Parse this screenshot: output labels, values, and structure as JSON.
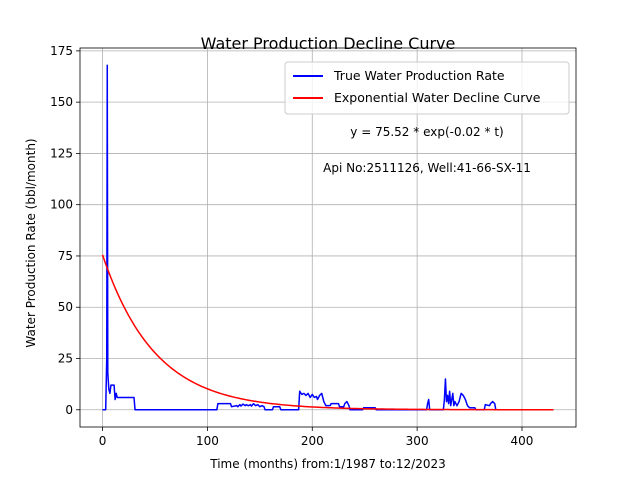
{
  "chart_data": {
    "type": "line",
    "title": "Water Production Decline Curve",
    "xlabel": "Time (months) from:1/1987 to:12/2023",
    "ylabel": "Water Production Rate (bbl/month)",
    "xlim": [
      -21.5,
      451.5
    ],
    "ylim": [
      -8.4,
      176.4
    ],
    "xticks": [
      0,
      100,
      200,
      300,
      400
    ],
    "yticks": [
      0,
      25,
      50,
      75,
      100,
      125,
      150,
      175
    ],
    "grid": true,
    "legend_position": "top-right",
    "annotations": [
      "y = 75.52 * exp(-0.02 * t)",
      "Api No:2511126, Well:41-66-SX-11"
    ],
    "series": [
      {
        "name": "True Water Production Rate",
        "color": "#0000ff",
        "points": [
          [
            0,
            0
          ],
          [
            3,
            0
          ],
          [
            4,
            25
          ],
          [
            4.5,
            168
          ],
          [
            5,
            18
          ],
          [
            6,
            10
          ],
          [
            7,
            8
          ],
          [
            8,
            12
          ],
          [
            11,
            12
          ],
          [
            12,
            5
          ],
          [
            13,
            8
          ],
          [
            14,
            6
          ],
          [
            30,
            6
          ],
          [
            31,
            0
          ],
          [
            109,
            0
          ],
          [
            110,
            3
          ],
          [
            122,
            3
          ],
          [
            123,
            1.5
          ],
          [
            128,
            2
          ],
          [
            129,
            1.5
          ],
          [
            131,
            2.5
          ],
          [
            132,
            1.8
          ],
          [
            134,
            2.8
          ],
          [
            136,
            2
          ],
          [
            137,
            2.5
          ],
          [
            139,
            2
          ],
          [
            141,
            2.5
          ],
          [
            142,
            1.8
          ],
          [
            144,
            3
          ],
          [
            146,
            2
          ],
          [
            148,
            2.5
          ],
          [
            150,
            1.5
          ],
          [
            152,
            2
          ],
          [
            154,
            1.5
          ],
          [
            155,
            0
          ],
          [
            162,
            0
          ],
          [
            163,
            1.5
          ],
          [
            169,
            1.5
          ],
          [
            170,
            0
          ],
          [
            187,
            0
          ],
          [
            188,
            9
          ],
          [
            190,
            7.5
          ],
          [
            192,
            8
          ],
          [
            194,
            7
          ],
          [
            196,
            8
          ],
          [
            198,
            6
          ],
          [
            200,
            7.5
          ],
          [
            202,
            6
          ],
          [
            204,
            6.5
          ],
          [
            205,
            5
          ],
          [
            207,
            7
          ],
          [
            209,
            8
          ],
          [
            211,
            4
          ],
          [
            213,
            2
          ],
          [
            217,
            2
          ],
          [
            218,
            3
          ],
          [
            225,
            3
          ],
          [
            226,
            1.5
          ],
          [
            230,
            1.5
          ],
          [
            231,
            3
          ],
          [
            233,
            4
          ],
          [
            235,
            2
          ],
          [
            236,
            0
          ],
          [
            248,
            0
          ],
          [
            249,
            1
          ],
          [
            260,
            1
          ],
          [
            261,
            0
          ],
          [
            309,
            0
          ],
          [
            310,
            3
          ],
          [
            311,
            5
          ],
          [
            312,
            0
          ],
          [
            325,
            0
          ],
          [
            326,
            5
          ],
          [
            327,
            15
          ],
          [
            328,
            4
          ],
          [
            329,
            7
          ],
          [
            330,
            3
          ],
          [
            331,
            9
          ],
          [
            332,
            2
          ],
          [
            334,
            8
          ],
          [
            335,
            2
          ],
          [
            336,
            4
          ],
          [
            338,
            2
          ],
          [
            340,
            4
          ],
          [
            342,
            8
          ],
          [
            344,
            7
          ],
          [
            346,
            5
          ],
          [
            348,
            2
          ],
          [
            350,
            1
          ],
          [
            355,
            1
          ],
          [
            356,
            0
          ],
          [
            364,
            0
          ],
          [
            365,
            2.5
          ],
          [
            369,
            2
          ],
          [
            370,
            3
          ],
          [
            372,
            4
          ],
          [
            374,
            3
          ],
          [
            375,
            0
          ],
          [
            430,
            0
          ]
        ]
      },
      {
        "name": "Exponential Water Decline Curve",
        "color": "#ff0000",
        "equation": {
          "a": 75.52,
          "b": 0.02,
          "x_start": 0,
          "x_end": 430
        }
      }
    ]
  }
}
